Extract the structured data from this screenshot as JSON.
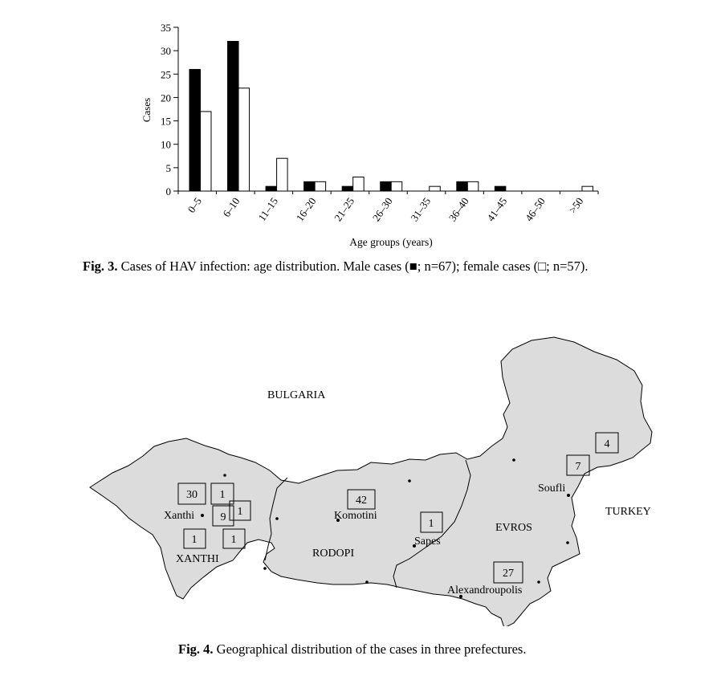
{
  "figure3": {
    "caption_label": "Fig. 3.",
    "caption_text": "Cases of HAV infection: age distribution. Male cases (■; n=67); female cases (□; n=57).",
    "chart_data": {
      "type": "bar",
      "xlabel": "Age groups (years)",
      "ylabel": "Cases",
      "ylim": [
        0,
        35
      ],
      "yticks": [
        0,
        5,
        10,
        15,
        20,
        25,
        30,
        35
      ],
      "categories": [
        "0–5",
        "6–10",
        "11–15",
        "16–20",
        "21–25",
        "26–30",
        "31–35",
        "36–40",
        "41–45",
        "46–50",
        ">50"
      ],
      "series": [
        {
          "fill": "#000000",
          "values": [
            26,
            32,
            1,
            2,
            1,
            2,
            0,
            2,
            1,
            0,
            0
          ]
        },
        {
          "fill": "#ffffff",
          "values": [
            17,
            22,
            7,
            2,
            3,
            2,
            1,
            2,
            0,
            0,
            1
          ]
        }
      ],
      "grid": false,
      "legend": "none"
    }
  },
  "figure4": {
    "caption_label": "Fig. 4.",
    "caption_text": "Geographical distribution of the cases in three prefectures.",
    "countries": {
      "north": "BULGARIA",
      "east": "TURKEY"
    },
    "prefectures": [
      "XANTHI",
      "RODOPI",
      "EVROS"
    ],
    "towns": [
      "Xanthi",
      "Komotini",
      "Sapes",
      "Soufli",
      "Alexandroupolis"
    ],
    "case_counts": {
      "xanthi_north_a": "30",
      "xanthi_north_b": "1",
      "xanthi_town": "9",
      "xanthi_east": "1",
      "xanthi_south_a": "1",
      "xanthi_south_b": "1",
      "komotini": "42",
      "sapes": "1",
      "evros_ne": "4",
      "soufli": "7",
      "alexandroupolis": "27"
    },
    "colors": {
      "land": "#dcdcdc",
      "border": "#000000"
    }
  }
}
